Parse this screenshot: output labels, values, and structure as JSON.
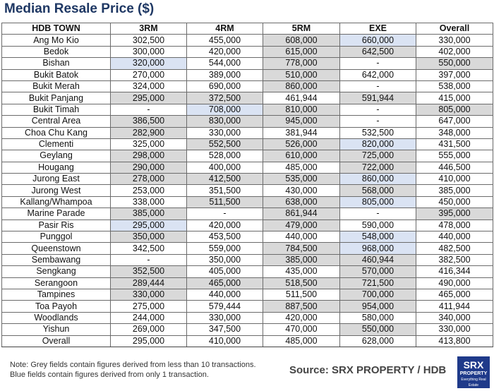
{
  "title": "Median Resale Price ($)",
  "headers": [
    "HDB TOWN",
    "3RM",
    "4RM",
    "5RM",
    "EXE",
    "Overall"
  ],
  "rows": [
    {
      "town": "Ang Mo Kio",
      "cells": [
        {
          "v": "302,500",
          "s": ""
        },
        {
          "v": "455,000",
          "s": ""
        },
        {
          "v": "608,000",
          "s": "g"
        },
        {
          "v": "660,000",
          "s": "b"
        },
        {
          "v": "330,000",
          "s": ""
        }
      ]
    },
    {
      "town": "Bedok",
      "cells": [
        {
          "v": "300,000",
          "s": ""
        },
        {
          "v": "420,000",
          "s": ""
        },
        {
          "v": "615,000",
          "s": "g"
        },
        {
          "v": "642,500",
          "s": "g"
        },
        {
          "v": "402,000",
          "s": ""
        }
      ]
    },
    {
      "town": "Bishan",
      "cells": [
        {
          "v": "320,000",
          "s": "b"
        },
        {
          "v": "544,000",
          "s": ""
        },
        {
          "v": "778,000",
          "s": "g"
        },
        {
          "v": "-",
          "s": ""
        },
        {
          "v": "550,000",
          "s": "g"
        }
      ]
    },
    {
      "town": "Bukit Batok",
      "cells": [
        {
          "v": "270,000",
          "s": ""
        },
        {
          "v": "389,000",
          "s": ""
        },
        {
          "v": "510,000",
          "s": "g"
        },
        {
          "v": "642,000",
          "s": ""
        },
        {
          "v": "397,000",
          "s": ""
        }
      ]
    },
    {
      "town": "Bukit Merah",
      "cells": [
        {
          "v": "324,000",
          "s": ""
        },
        {
          "v": "690,000",
          "s": ""
        },
        {
          "v": "860,000",
          "s": "g"
        },
        {
          "v": "-",
          "s": ""
        },
        {
          "v": "538,000",
          "s": ""
        }
      ]
    },
    {
      "town": "Bukit Panjang",
      "cells": [
        {
          "v": "295,000",
          "s": "g"
        },
        {
          "v": "372,500",
          "s": "g"
        },
        {
          "v": "461,944",
          "s": ""
        },
        {
          "v": "591,944",
          "s": "g"
        },
        {
          "v": "415,000",
          "s": ""
        }
      ]
    },
    {
      "town": "Bukit Timah",
      "cells": [
        {
          "v": "-",
          "s": ""
        },
        {
          "v": "708,000",
          "s": "b"
        },
        {
          "v": "810,000",
          "s": "g"
        },
        {
          "v": "-",
          "s": ""
        },
        {
          "v": "805,000",
          "s": "g"
        }
      ]
    },
    {
      "town": "Central Area",
      "cells": [
        {
          "v": "386,500",
          "s": "g"
        },
        {
          "v": "830,000",
          "s": "g"
        },
        {
          "v": "945,000",
          "s": "g"
        },
        {
          "v": "-",
          "s": ""
        },
        {
          "v": "647,000",
          "s": ""
        }
      ]
    },
    {
      "town": "Choa Chu Kang",
      "cells": [
        {
          "v": "282,900",
          "s": "g"
        },
        {
          "v": "330,000",
          "s": ""
        },
        {
          "v": "381,944",
          "s": ""
        },
        {
          "v": "532,500",
          "s": ""
        },
        {
          "v": "348,000",
          "s": ""
        }
      ]
    },
    {
      "town": "Clementi",
      "cells": [
        {
          "v": "325,000",
          "s": ""
        },
        {
          "v": "552,500",
          "s": "g"
        },
        {
          "v": "526,000",
          "s": "g"
        },
        {
          "v": "820,000",
          "s": "b"
        },
        {
          "v": "431,500",
          "s": ""
        }
      ]
    },
    {
      "town": "Geylang",
      "cells": [
        {
          "v": "298,000",
          "s": "g"
        },
        {
          "v": "528,000",
          "s": ""
        },
        {
          "v": "610,000",
          "s": "g"
        },
        {
          "v": "725,000",
          "s": "g"
        },
        {
          "v": "555,000",
          "s": ""
        }
      ]
    },
    {
      "town": "Hougang",
      "cells": [
        {
          "v": "290,000",
          "s": "g"
        },
        {
          "v": "400,000",
          "s": ""
        },
        {
          "v": "485,000",
          "s": ""
        },
        {
          "v": "722,000",
          "s": "g"
        },
        {
          "v": "446,500",
          "s": ""
        }
      ]
    },
    {
      "town": "Jurong East",
      "cells": [
        {
          "v": "278,000",
          "s": "g"
        },
        {
          "v": "412,500",
          "s": "g"
        },
        {
          "v": "535,000",
          "s": "g"
        },
        {
          "v": "860,000",
          "s": "b"
        },
        {
          "v": "410,000",
          "s": ""
        }
      ]
    },
    {
      "town": "Jurong West",
      "cells": [
        {
          "v": "253,000",
          "s": ""
        },
        {
          "v": "351,500",
          "s": ""
        },
        {
          "v": "430,000",
          "s": ""
        },
        {
          "v": "568,000",
          "s": "g"
        },
        {
          "v": "385,000",
          "s": ""
        }
      ]
    },
    {
      "town": "Kallang/Whampoa",
      "cells": [
        {
          "v": "338,000",
          "s": ""
        },
        {
          "v": "511,500",
          "s": "g"
        },
        {
          "v": "638,000",
          "s": "g"
        },
        {
          "v": "805,000",
          "s": "b"
        },
        {
          "v": "450,000",
          "s": ""
        }
      ]
    },
    {
      "town": "Marine Parade",
      "cells": [
        {
          "v": "385,000",
          "s": "g"
        },
        {
          "v": "-",
          "s": ""
        },
        {
          "v": "861,944",
          "s": "g"
        },
        {
          "v": "-",
          "s": ""
        },
        {
          "v": "395,000",
          "s": "g"
        }
      ]
    },
    {
      "town": "Pasir Ris",
      "cells": [
        {
          "v": "295,000",
          "s": "b"
        },
        {
          "v": "420,000",
          "s": ""
        },
        {
          "v": "479,000",
          "s": "g"
        },
        {
          "v": "590,000",
          "s": ""
        },
        {
          "v": "478,000",
          "s": ""
        }
      ]
    },
    {
      "town": "Punggol",
      "cells": [
        {
          "v": "350,000",
          "s": "g"
        },
        {
          "v": "453,500",
          "s": ""
        },
        {
          "v": "440,000",
          "s": ""
        },
        {
          "v": "548,000",
          "s": "b"
        },
        {
          "v": "440,000",
          "s": ""
        }
      ]
    },
    {
      "town": "Queenstown",
      "cells": [
        {
          "v": "342,500",
          "s": ""
        },
        {
          "v": "559,000",
          "s": ""
        },
        {
          "v": "784,500",
          "s": "g"
        },
        {
          "v": "968,000",
          "s": "b"
        },
        {
          "v": "482,500",
          "s": ""
        }
      ]
    },
    {
      "town": "Sembawang",
      "cells": [
        {
          "v": "-",
          "s": ""
        },
        {
          "v": "350,000",
          "s": ""
        },
        {
          "v": "385,000",
          "s": "g"
        },
        {
          "v": "460,944",
          "s": "g"
        },
        {
          "v": "382,500",
          "s": ""
        }
      ]
    },
    {
      "town": "Sengkang",
      "cells": [
        {
          "v": "352,500",
          "s": "g"
        },
        {
          "v": "405,000",
          "s": ""
        },
        {
          "v": "435,000",
          "s": ""
        },
        {
          "v": "570,000",
          "s": "g"
        },
        {
          "v": "416,344",
          "s": ""
        }
      ]
    },
    {
      "town": "Serangoon",
      "cells": [
        {
          "v": "289,444",
          "s": "g"
        },
        {
          "v": "465,000",
          "s": "g"
        },
        {
          "v": "518,500",
          "s": "g"
        },
        {
          "v": "721,500",
          "s": "g"
        },
        {
          "v": "490,000",
          "s": ""
        }
      ]
    },
    {
      "town": "Tampines",
      "cells": [
        {
          "v": "330,000",
          "s": "g"
        },
        {
          "v": "440,000",
          "s": ""
        },
        {
          "v": "511,500",
          "s": ""
        },
        {
          "v": "700,000",
          "s": "g"
        },
        {
          "v": "465,000",
          "s": ""
        }
      ]
    },
    {
      "town": "Toa Payoh",
      "cells": [
        {
          "v": "275,000",
          "s": ""
        },
        {
          "v": "579,444",
          "s": ""
        },
        {
          "v": "887,500",
          "s": "g"
        },
        {
          "v": "954,000",
          "s": "g"
        },
        {
          "v": "411,944",
          "s": ""
        }
      ]
    },
    {
      "town": "Woodlands",
      "cells": [
        {
          "v": "244,000",
          "s": ""
        },
        {
          "v": "330,000",
          "s": ""
        },
        {
          "v": "420,000",
          "s": ""
        },
        {
          "v": "580,000",
          "s": ""
        },
        {
          "v": "340,000",
          "s": ""
        }
      ]
    },
    {
      "town": "Yishun",
      "cells": [
        {
          "v": "269,000",
          "s": ""
        },
        {
          "v": "347,500",
          "s": ""
        },
        {
          "v": "470,000",
          "s": ""
        },
        {
          "v": "550,000",
          "s": "g"
        },
        {
          "v": "330,000",
          "s": ""
        }
      ]
    },
    {
      "town": "Overall",
      "cells": [
        {
          "v": "295,000",
          "s": ""
        },
        {
          "v": "410,000",
          "s": ""
        },
        {
          "v": "485,000",
          "s": ""
        },
        {
          "v": "628,000",
          "s": ""
        },
        {
          "v": "413,800",
          "s": ""
        }
      ]
    }
  ],
  "notes": [
    "Note: Grey fields contain figures derived from less than 10 transactions.",
    "Blue fields contain figures derived from only 1 transaction."
  ],
  "source": "Source:  SRX PROPERTY / HDB",
  "logo": {
    "line1": "SRX",
    "line2": "PROPERTY",
    "line3": "Everything Real Estate"
  },
  "colors": {
    "title": "#1f3864",
    "grey_field": "#d9d9d9",
    "blue_field": "#dae3f3",
    "logo_bg": "#1f3a8a"
  }
}
